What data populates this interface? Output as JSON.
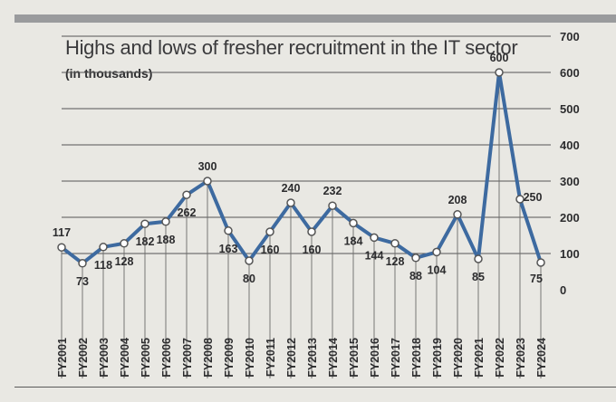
{
  "chart_data": {
    "type": "line",
    "title": "Highs and lows of fresher recruitment in the IT sector",
    "subtitle": "(in thousands)",
    "categories": [
      "FY2001",
      "FY2002",
      "FY2003",
      "FY2004",
      "FY2005",
      "FY2006",
      "FY2007",
      "FY2008",
      "FY2009",
      "FY2010",
      "FY2011",
      "FY2012",
      "FY2013",
      "FY2014",
      "FY2015",
      "FY2016",
      "FY2017",
      "FY2018",
      "FY2019",
      "FY2020",
      "FY2021",
      "FY2022",
      "FY2023",
      "FY2024"
    ],
    "series": [
      {
        "values": [
          117,
          73,
          118,
          128,
          182,
          188,
          262,
          300,
          163,
          80,
          160,
          240,
          160,
          232,
          184,
          144,
          128,
          88,
          104,
          208,
          85,
          600,
          250,
          75
        ]
      }
    ],
    "y_ticks": [
      0,
      100,
      200,
      300,
      400,
      500,
      600,
      700
    ],
    "ylim": [
      0,
      700
    ],
    "y_axis_position": "right",
    "grid": true,
    "colors": {
      "line": "#3d6aa0",
      "marker_fill": "#ffffff",
      "grid": "#555555",
      "text": "#2c2c2e"
    }
  }
}
